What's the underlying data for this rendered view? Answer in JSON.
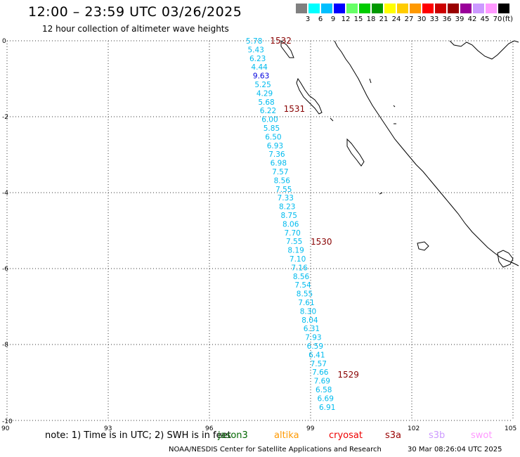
{
  "title": "12:00 – 23:59 UTC 03/26/2025",
  "subtitle": "12 hour collection of altimeter wave heights",
  "legend": {
    "labels": [
      "3",
      "6",
      "9",
      "12",
      "15",
      "18",
      "21",
      "24",
      "27",
      "30",
      "33",
      "36",
      "39",
      "42",
      "45",
      "70"
    ],
    "unit": "(ft)",
    "colors": [
      "#808080",
      "#00ffff",
      "#00bfff",
      "#0000ff",
      "#66ff66",
      "#00cc00",
      "#009900",
      "#ffff00",
      "#ffcc00",
      "#ff9900",
      "#ff0000",
      "#cc0000",
      "#990000",
      "#990099",
      "#cc99ff",
      "#ff99ff",
      "#000000"
    ]
  },
  "map": {
    "lon_range": [
      90,
      105
    ],
    "lat_range": [
      -10,
      0
    ],
    "x_ticks": [
      "90",
      "93",
      "96",
      "99",
      "102",
      "105"
    ],
    "y_ticks": [
      "0",
      "-2",
      "-4",
      "-6",
      "-8",
      "-10"
    ],
    "track_color": "#00bbee",
    "cycle_color": "#880000",
    "wave_heights": [
      "5.78",
      "5.43",
      "6.23",
      "4.44",
      "9.63",
      "5.25",
      "4.29",
      "5.68",
      "6.22",
      "6.00",
      "5.85",
      "6.50",
      "6.93",
      "7.36",
      "6.98",
      "7.57",
      "8.56",
      "7.55",
      "7.33",
      "8.23",
      "8.75",
      "8.06",
      "7.70",
      "7.55",
      "8.19",
      "7.10",
      "7.16",
      "8.56",
      "7.54",
      "8.55",
      "7.61",
      "8.30",
      "8.04",
      "6.31",
      "7.93",
      "6.59",
      "6.41",
      "7.57",
      "7.66",
      "7.69",
      "6.58",
      "6.69",
      "6.91"
    ],
    "cycle_labels": [
      {
        "label": "1532",
        "lon": 97.8,
        "lat": 0.0
      },
      {
        "label": "1531",
        "lon": 98.2,
        "lat": -1.8
      },
      {
        "label": "1530",
        "lon": 99.0,
        "lat": -5.3
      },
      {
        "label": "1529",
        "lon": 99.8,
        "lat": -8.8
      }
    ]
  },
  "note": {
    "prefix": "note:  1) Time is in UTC; 2) SWH is in feet",
    "satellites": [
      {
        "name": "jason3",
        "color": "#006600"
      },
      {
        "name": "altika",
        "color": "#ff9900"
      },
      {
        "name": "cryosat",
        "color": "#ee0000"
      },
      {
        "name": "s3a",
        "color": "#990000"
      },
      {
        "name": "s3b",
        "color": "#cc99ff"
      },
      {
        "name": "swot",
        "color": "#ff99ff"
      }
    ]
  },
  "footer": {
    "org": "NOAA/NESDIS Center for Satellite Applications and Research",
    "timestamp": "30 Mar 08:26:04 UTC 2025"
  }
}
